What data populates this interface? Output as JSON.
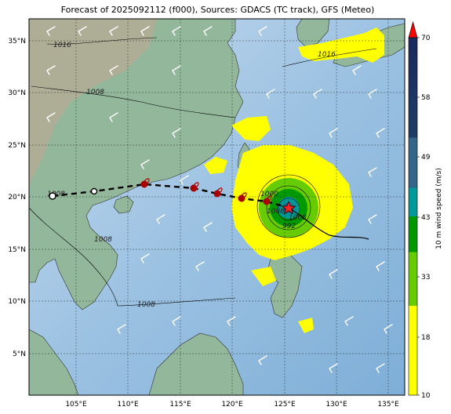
{
  "title": "Forecast of 2025092112 (f000), Sources: GDACS (TC track), GFS (Meteo)",
  "map": {
    "lon_ticks": [
      "105°E",
      "110°E",
      "115°E",
      "120°E",
      "125°E",
      "130°E",
      "135°E"
    ],
    "lat_ticks": [
      "35°N",
      "30°N",
      "25°N",
      "20°N",
      "15°N",
      "10°N",
      "5°N"
    ],
    "isobar_labels": [
      "1016",
      "1008",
      "1016",
      "1008",
      "1008",
      "1008",
      "1000",
      "992",
      "1008",
      "1008"
    ]
  },
  "colorbar": {
    "label": "10 m wind speed (m/s)",
    "ticks": [
      "10",
      "18",
      "33",
      "43",
      "49",
      "58",
      "70"
    ],
    "colors": [
      "#ffff00",
      "#66cc00",
      "#009900",
      "#009999",
      "#336688",
      "#1f3d66",
      "#1a2a5e"
    ],
    "extend_color": "#ff0000"
  },
  "track": {
    "symbols": [
      "open-circle",
      "open-circle",
      "typhoon",
      "typhoon",
      "typhoon",
      "typhoon",
      "typhoon",
      "typhoon",
      "current-star"
    ]
  }
}
